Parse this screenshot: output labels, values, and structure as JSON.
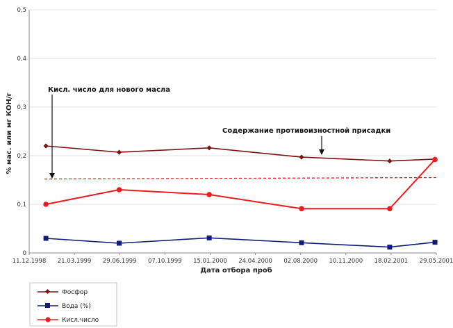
{
  "chart_data": {
    "type": "line",
    "title": "",
    "xlabel": "Дата отбора проб",
    "ylabel": "% мас. или мг КОН/г",
    "ylim": [
      0,
      0.5
    ],
    "yticks": [
      "0",
      "0,1",
      "0,2",
      "0,3",
      "0,4",
      "0,5"
    ],
    "x_range": [
      "1998-12-11",
      "2001-05-29"
    ],
    "xtick_dates": [
      "1998-12-11",
      "1999-03-21",
      "1999-06-29",
      "1999-10-07",
      "2000-01-15",
      "2000-04-24",
      "2000-08-02",
      "2000-11-10",
      "2001-02-18",
      "2001-05-29"
    ],
    "xtick_labels": [
      "11.12.1998",
      "21.03.1999",
      "29.06.1999",
      "07.10.1999",
      "15.01.2000",
      "24.04.2000",
      "02.08.2000",
      "10.11.2000",
      "18.02.2001",
      "29.05.2001"
    ],
    "grid": "horizontal",
    "legend_position": "bottom-left",
    "x": [
      "1999-01-17",
      "1999-06-28",
      "2000-01-13",
      "2000-08-04",
      "2001-02-15",
      "2001-05-26"
    ],
    "series": [
      {
        "name": "Фосфор",
        "color": "#7a1414",
        "marker": "diamond",
        "values": [
          0.22,
          0.207,
          0.216,
          0.197,
          0.189,
          0.193
        ]
      },
      {
        "name": "Вода (%)",
        "color": "#101c7a",
        "marker": "square",
        "values": [
          0.03,
          0.02,
          0.031,
          0.021,
          0.012,
          0.022
        ]
      },
      {
        "name": "Кисл.число",
        "color": "#ee1c1c",
        "marker": "circle",
        "values": [
          0.1,
          0.13,
          0.12,
          0.091,
          0.091,
          0.192
        ]
      }
    ],
    "reference_line": {
      "y_start": 0.152,
      "y_end": 0.155,
      "color": "#e02020",
      "style": "dashed"
    },
    "annotations": [
      {
        "text": "Кисл. число для нового масла"
      },
      {
        "text": "Содержание противоизностной присадки"
      }
    ]
  }
}
